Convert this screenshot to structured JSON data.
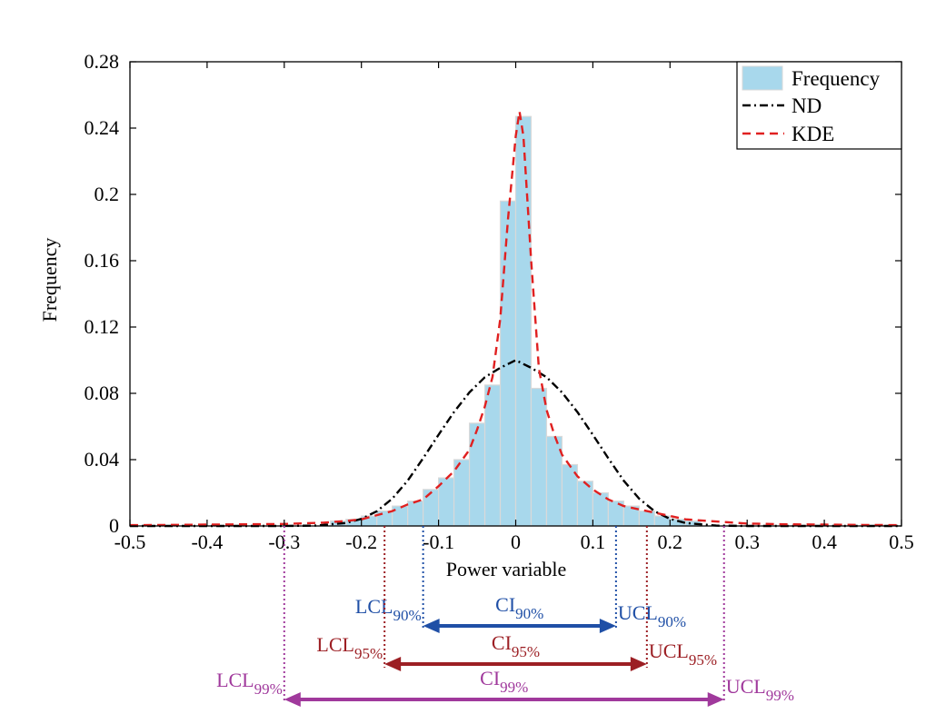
{
  "chart_data": {
    "type": "bar",
    "title": "",
    "xlabel": "Power variable",
    "ylabel": "Frequency",
    "xlim": [
      -0.5,
      0.5
    ],
    "ylim": [
      0,
      0.28
    ],
    "x_ticks": [
      -0.5,
      -0.4,
      -0.3,
      -0.2,
      -0.1,
      0,
      0.1,
      0.2,
      0.3,
      0.4,
      0.5
    ],
    "x_tick_labels": [
      "-0.5",
      "-0.4",
      "-0.3",
      "-0.2",
      "-0.1",
      "0",
      "0.1",
      "0.2",
      "0.3",
      "0.4",
      "0.5"
    ],
    "y_ticks": [
      0,
      0.04,
      0.08,
      0.12,
      0.16,
      0.2,
      0.24,
      0.28
    ],
    "y_tick_labels": [
      "0",
      "0.04",
      "0.08",
      "0.12",
      "0.16",
      "0.2",
      "0.24",
      "0.28"
    ],
    "grid": false,
    "legend_position": "top-right",
    "bin_width": 0.02,
    "bins": [
      {
        "x": -0.23,
        "y": 0.003
      },
      {
        "x": -0.21,
        "y": 0.004
      },
      {
        "x": -0.19,
        "y": 0.006
      },
      {
        "x": -0.17,
        "y": 0.009
      },
      {
        "x": -0.15,
        "y": 0.012
      },
      {
        "x": -0.13,
        "y": 0.015
      },
      {
        "x": -0.11,
        "y": 0.022
      },
      {
        "x": -0.09,
        "y": 0.029
      },
      {
        "x": -0.07,
        "y": 0.04
      },
      {
        "x": -0.05,
        "y": 0.062
      },
      {
        "x": -0.03,
        "y": 0.085
      },
      {
        "x": -0.01,
        "y": 0.196
      },
      {
        "x": 0.01,
        "y": 0.247
      },
      {
        "x": 0.03,
        "y": 0.083
      },
      {
        "x": 0.05,
        "y": 0.054
      },
      {
        "x": 0.07,
        "y": 0.037
      },
      {
        "x": 0.09,
        "y": 0.027
      },
      {
        "x": 0.11,
        "y": 0.02
      },
      {
        "x": 0.13,
        "y": 0.015
      },
      {
        "x": 0.15,
        "y": 0.012
      },
      {
        "x": 0.17,
        "y": 0.009
      },
      {
        "x": 0.19,
        "y": 0.006
      },
      {
        "x": 0.21,
        "y": 0.004
      },
      {
        "x": 0.23,
        "y": 0.003
      }
    ],
    "series": [
      {
        "name": "Frequency",
        "type": "bar",
        "color": "#a8d8ec"
      },
      {
        "name": "ND",
        "type": "line",
        "style": "dash-dot",
        "color": "#000000",
        "x": [
          -0.5,
          -0.4,
          -0.3,
          -0.26,
          -0.22,
          -0.2,
          -0.18,
          -0.16,
          -0.14,
          -0.12,
          -0.1,
          -0.08,
          -0.06,
          -0.04,
          -0.02,
          0,
          0.02,
          0.04,
          0.06,
          0.08,
          0.1,
          0.12,
          0.14,
          0.16,
          0.18,
          0.2,
          0.22,
          0.26,
          0.3,
          0.4,
          0.5
        ],
        "y": [
          0,
          0,
          0,
          0.0002,
          0.0018,
          0.0043,
          0.0089,
          0.0165,
          0.0273,
          0.0408,
          0.055,
          0.0687,
          0.0806,
          0.0897,
          0.0954,
          0.1,
          0.0954,
          0.0897,
          0.0806,
          0.0687,
          0.055,
          0.0408,
          0.0273,
          0.0165,
          0.0089,
          0.0043,
          0.0018,
          0.0002,
          0,
          0,
          0
        ]
      },
      {
        "name": "KDE",
        "type": "line",
        "style": "dashed",
        "color": "#e02020",
        "x": [
          -0.5,
          -0.45,
          -0.4,
          -0.35,
          -0.3,
          -0.25,
          -0.22,
          -0.2,
          -0.18,
          -0.16,
          -0.14,
          -0.12,
          -0.1,
          -0.08,
          -0.06,
          -0.05,
          -0.04,
          -0.03,
          -0.02,
          -0.01,
          0,
          0.005,
          0.01,
          0.02,
          0.03,
          0.04,
          0.05,
          0.06,
          0.08,
          0.1,
          0.12,
          0.14,
          0.16,
          0.18,
          0.2,
          0.22,
          0.25,
          0.3,
          0.35,
          0.4,
          0.45,
          0.5
        ],
        "y": [
          0.0005,
          0.0006,
          0.0008,
          0.001,
          0.0012,
          0.002,
          0.003,
          0.004,
          0.0065,
          0.009,
          0.013,
          0.016,
          0.024,
          0.033,
          0.046,
          0.058,
          0.072,
          0.09,
          0.125,
          0.185,
          0.235,
          0.25,
          0.235,
          0.16,
          0.095,
          0.07,
          0.055,
          0.043,
          0.03,
          0.022,
          0.016,
          0.012,
          0.01,
          0.008,
          0.006,
          0.004,
          0.003,
          0.0015,
          0.001,
          0.0008,
          0.0006,
          0.0005
        ]
      }
    ],
    "intervals": [
      {
        "ci_base": "CI",
        "ci_sub": "90%",
        "lcl_base": "LCL",
        "lcl_sub": "90%",
        "ucl_base": "UCL",
        "ucl_sub": "90%",
        "lower": -0.12,
        "upper": 0.13,
        "color": "#1f4fa6"
      },
      {
        "ci_base": "CI",
        "ci_sub": "95%",
        "lcl_base": "LCL",
        "lcl_sub": "95%",
        "ucl_base": "UCL",
        "ucl_sub": "95%",
        "lower": -0.17,
        "upper": 0.17,
        "color": "#9c1f24"
      },
      {
        "ci_base": "CI",
        "ci_sub": "99%",
        "lcl_base": "LCL",
        "lcl_sub": "99%",
        "ucl_base": "UCL",
        "ucl_sub": "99%",
        "lower": -0.3,
        "upper": 0.27,
        "color": "#a0399c"
      }
    ]
  }
}
